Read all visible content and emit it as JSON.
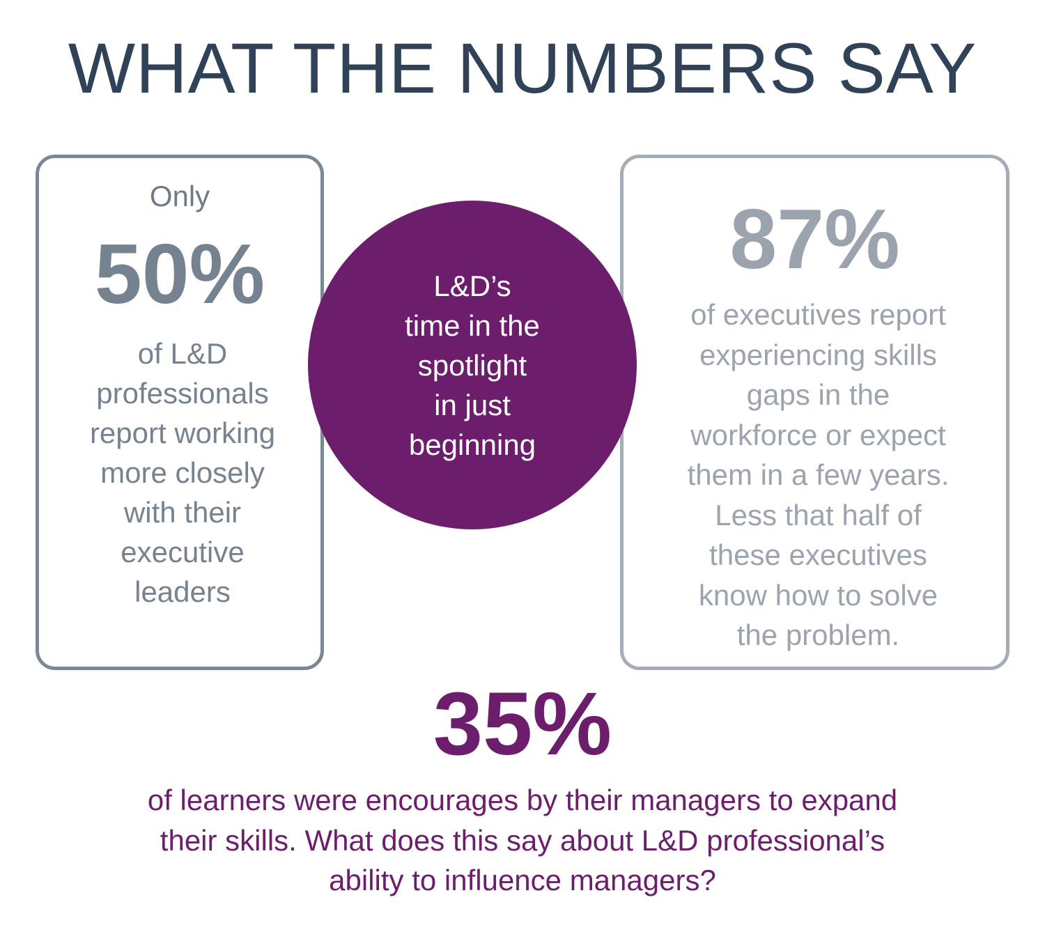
{
  "title": "WHAT THE NUMBERS SAY",
  "left_card": {
    "lead": "Only",
    "stat": "50%",
    "lines": [
      "of L&D",
      "professionals",
      "report working",
      "more closely",
      "with their",
      "executive",
      "leaders"
    ]
  },
  "circle": {
    "lines": [
      "L&D’s",
      "time in the",
      "spotlight",
      "in just",
      "beginning"
    ]
  },
  "right_card": {
    "stat": "87%",
    "lines": [
      "of executives report",
      "experiencing skills",
      "gaps in the",
      "workforce or expect",
      "them in a few years.",
      "Less that half of",
      "these executives",
      "know how to solve",
      "the problem."
    ]
  },
  "bottom": {
    "stat": "35%",
    "lines": [
      "of learners were encourages by their managers to expand",
      "their skills. What does this say about L&D professional’s",
      "ability to influence managers?"
    ]
  },
  "colors": {
    "title": "#2f4257",
    "left_card": "#75828f",
    "right_card": "#9ba4ae",
    "accent_purple": "#6c1e6c"
  }
}
